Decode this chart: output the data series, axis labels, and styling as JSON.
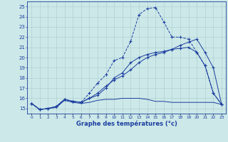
{
  "xlabel": "Graphe des températures (°c)",
  "hours": [
    0,
    1,
    2,
    3,
    4,
    5,
    6,
    7,
    8,
    9,
    10,
    11,
    12,
    13,
    14,
    15,
    16,
    17,
    18,
    19,
    20,
    21,
    22,
    23
  ],
  "line_flat": [
    15.5,
    14.9,
    15.0,
    15.1,
    15.8,
    15.6,
    15.5,
    15.6,
    15.8,
    15.9,
    15.9,
    16.0,
    16.0,
    16.0,
    15.9,
    15.7,
    15.7,
    15.6,
    15.6,
    15.6,
    15.6,
    15.6,
    15.6,
    15.4
  ],
  "line_peak": [
    15.5,
    14.9,
    15.0,
    15.2,
    15.9,
    15.7,
    15.6,
    16.5,
    17.5,
    18.3,
    19.7,
    20.0,
    21.6,
    24.2,
    24.8,
    24.9,
    23.5,
    22.0,
    22.0,
    21.8,
    20.5,
    19.2,
    16.5,
    15.4
  ],
  "line_mid": [
    15.5,
    14.9,
    15.0,
    15.2,
    15.9,
    15.7,
    15.6,
    16.0,
    16.3,
    17.0,
    18.0,
    18.5,
    19.5,
    20.0,
    20.3,
    20.5,
    20.6,
    20.8,
    20.9,
    21.0,
    20.5,
    19.2,
    16.5,
    15.4
  ],
  "line_diag": [
    15.5,
    14.9,
    15.0,
    15.2,
    15.9,
    15.7,
    15.6,
    16.0,
    16.5,
    17.2,
    17.8,
    18.2,
    18.8,
    19.5,
    20.0,
    20.3,
    20.5,
    20.8,
    21.2,
    21.5,
    21.8,
    20.5,
    19.0,
    15.4
  ],
  "ylim": [
    14.5,
    25.5
  ],
  "xlim": [
    -0.5,
    23.5
  ],
  "yticks": [
    15,
    16,
    17,
    18,
    19,
    20,
    21,
    22,
    23,
    24,
    25
  ],
  "color": "#1c3ea0",
  "bg_color": "#cce8e8",
  "grid_color": "#aacccc"
}
